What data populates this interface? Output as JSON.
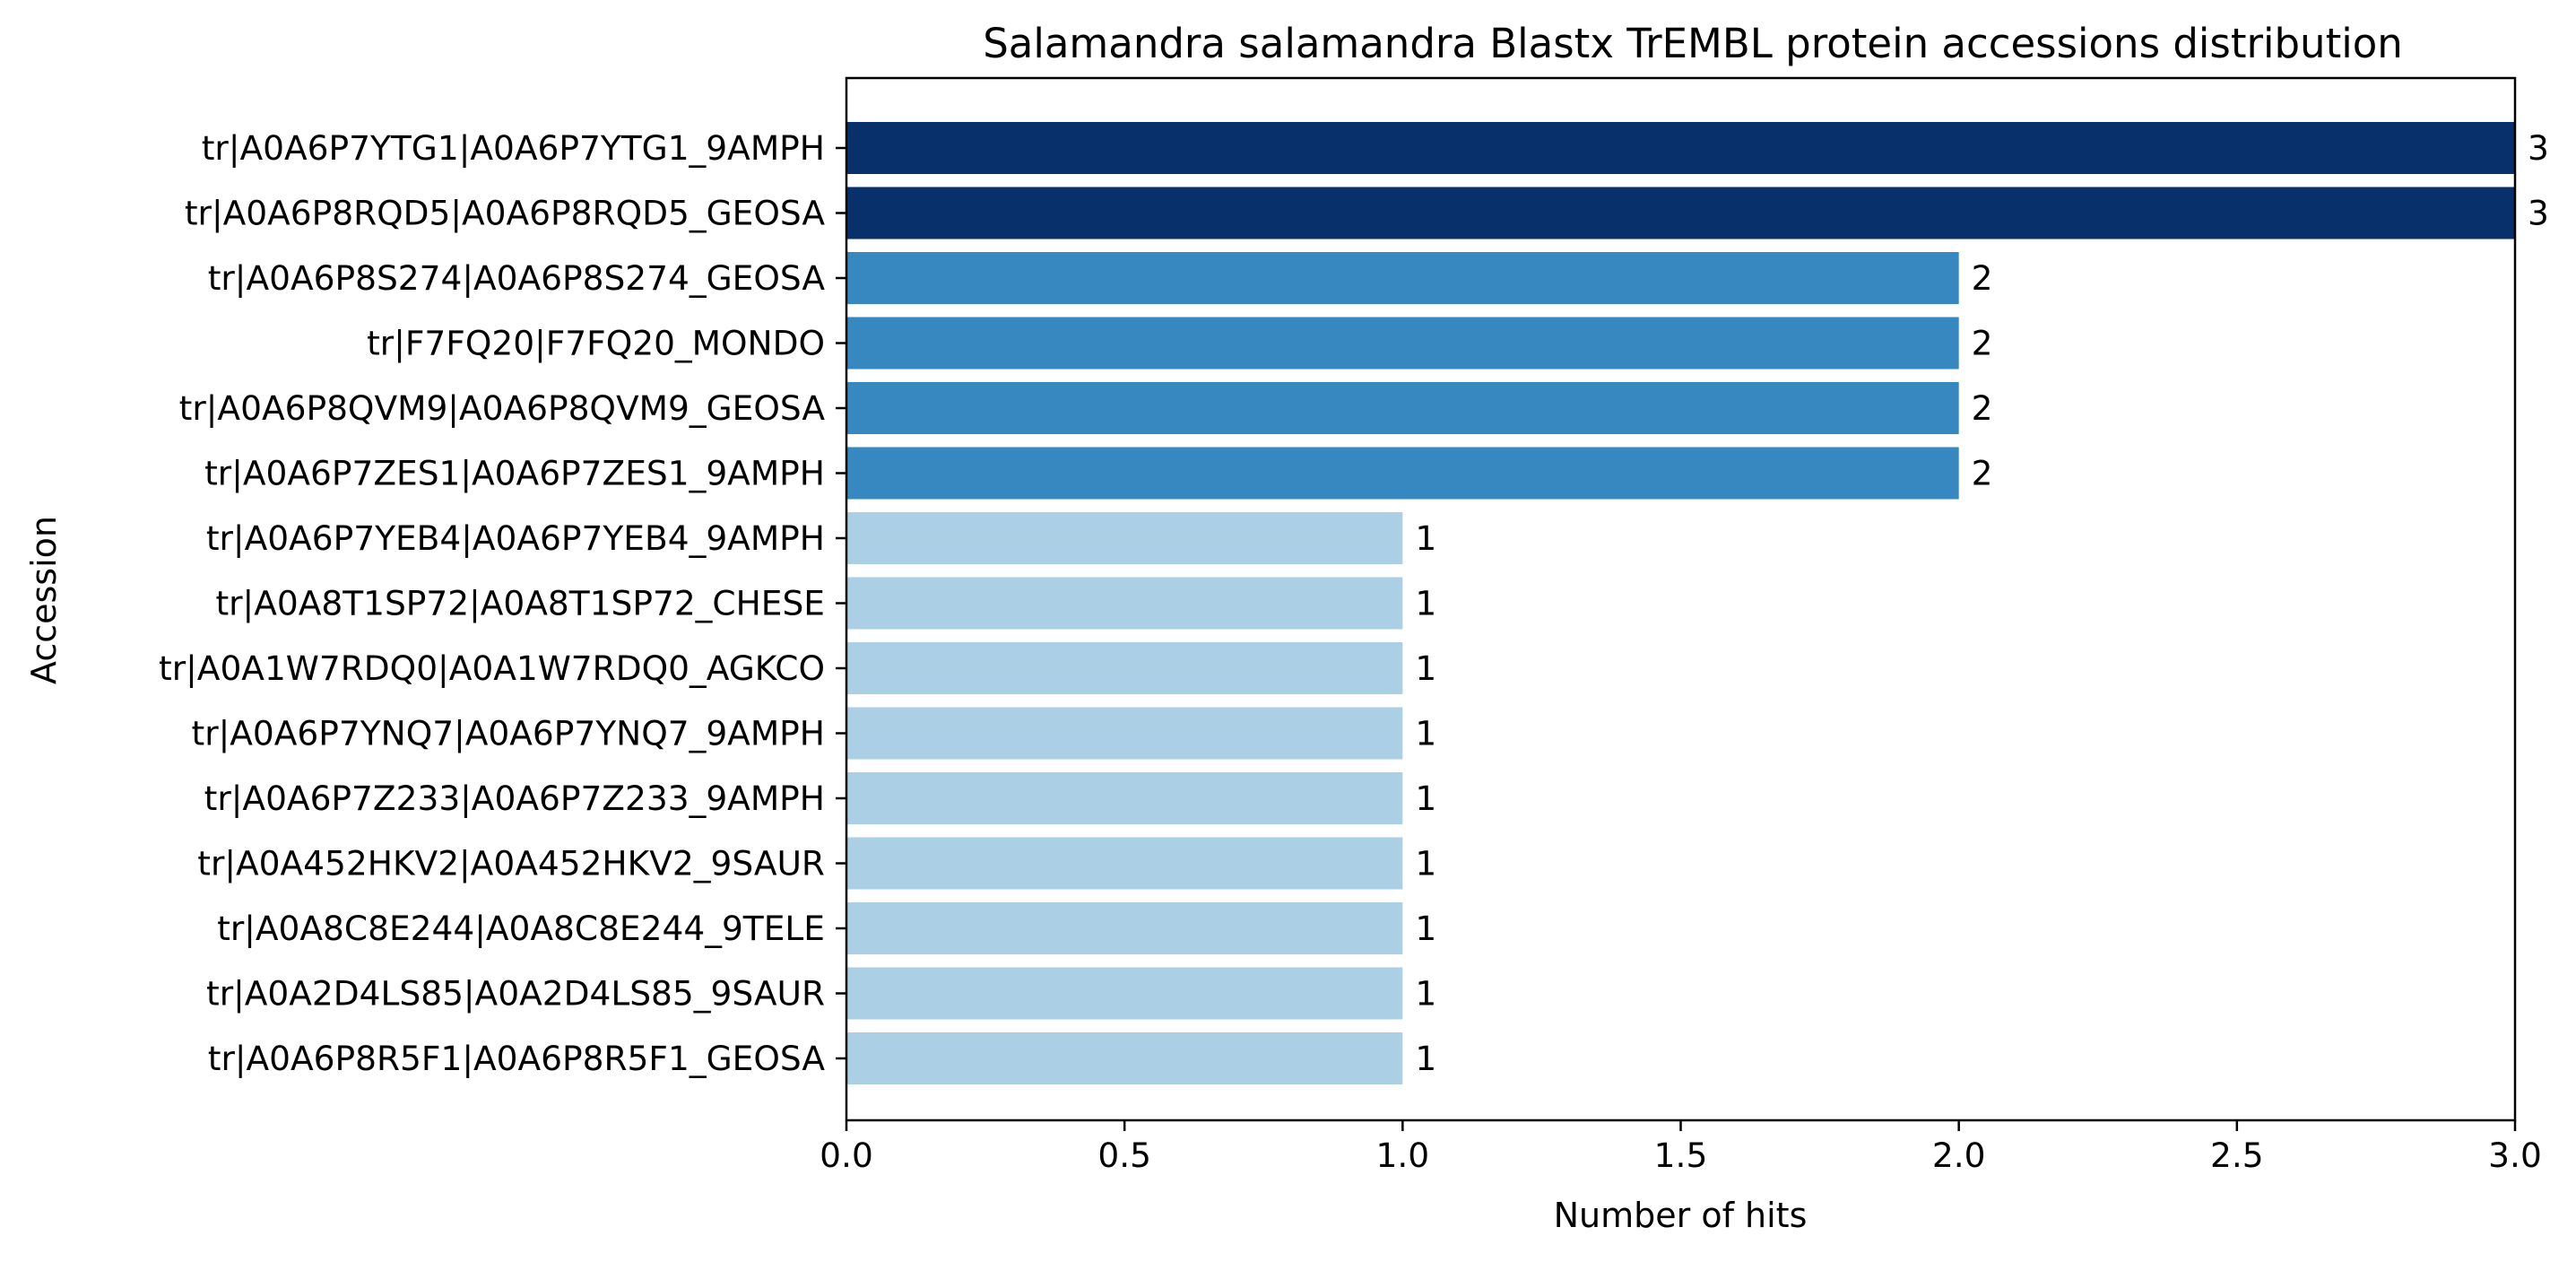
{
  "chart_data": {
    "type": "bar",
    "orientation": "horizontal",
    "title": "Salamandra salamandra Blastx TrEMBL protein accessions distribution",
    "xlabel": "Number of hits",
    "ylabel": "Accession",
    "xlim": [
      0,
      3
    ],
    "xticks": [
      "0.0",
      "0.5",
      "1.0",
      "1.5",
      "2.0",
      "2.5",
      "3.0"
    ],
    "grid": false,
    "bars": [
      {
        "category": "tr|A0A6P7YTG1|A0A6P7YTG1_9AMPH",
        "value": 3,
        "label": "3",
        "color": "#08306b"
      },
      {
        "category": "tr|A0A6P8RQD5|A0A6P8RQD5_GEOSA",
        "value": 3,
        "label": "3",
        "color": "#08306b"
      },
      {
        "category": "tr|A0A6P8S274|A0A6P8S274_GEOSA",
        "value": 2,
        "label": "2",
        "color": "#3787c0"
      },
      {
        "category": "tr|F7FQ20|F7FQ20_MONDO",
        "value": 2,
        "label": "2",
        "color": "#3787c0"
      },
      {
        "category": "tr|A0A6P8QVM9|A0A6P8QVM9_GEOSA",
        "value": 2,
        "label": "2",
        "color": "#3787c0"
      },
      {
        "category": "tr|A0A6P7ZES1|A0A6P7ZES1_9AMPH",
        "value": 2,
        "label": "2",
        "color": "#3787c0"
      },
      {
        "category": "tr|A0A6P7YEB4|A0A6P7YEB4_9AMPH",
        "value": 1,
        "label": "1",
        "color": "#abd0e6"
      },
      {
        "category": "tr|A0A8T1SP72|A0A8T1SP72_CHESE",
        "value": 1,
        "label": "1",
        "color": "#abd0e6"
      },
      {
        "category": "tr|A0A1W7RDQ0|A0A1W7RDQ0_AGKCO",
        "value": 1,
        "label": "1",
        "color": "#abd0e6"
      },
      {
        "category": "tr|A0A6P7YNQ7|A0A6P7YNQ7_9AMPH",
        "value": 1,
        "label": "1",
        "color": "#abd0e6"
      },
      {
        "category": "tr|A0A6P7Z233|A0A6P7Z233_9AMPH",
        "value": 1,
        "label": "1",
        "color": "#abd0e6"
      },
      {
        "category": "tr|A0A452HKV2|A0A452HKV2_9SAUR",
        "value": 1,
        "label": "1",
        "color": "#abd0e6"
      },
      {
        "category": "tr|A0A8C8E244|A0A8C8E244_9TELE",
        "value": 1,
        "label": "1",
        "color": "#abd0e6"
      },
      {
        "category": "tr|A0A2D4LS85|A0A2D4LS85_9SAUR",
        "value": 1,
        "label": "1",
        "color": "#abd0e6"
      },
      {
        "category": "tr|A0A6P8R5F1|A0A6P8R5F1_GEOSA",
        "value": 1,
        "label": "1",
        "color": "#abd0e6"
      }
    ]
  }
}
